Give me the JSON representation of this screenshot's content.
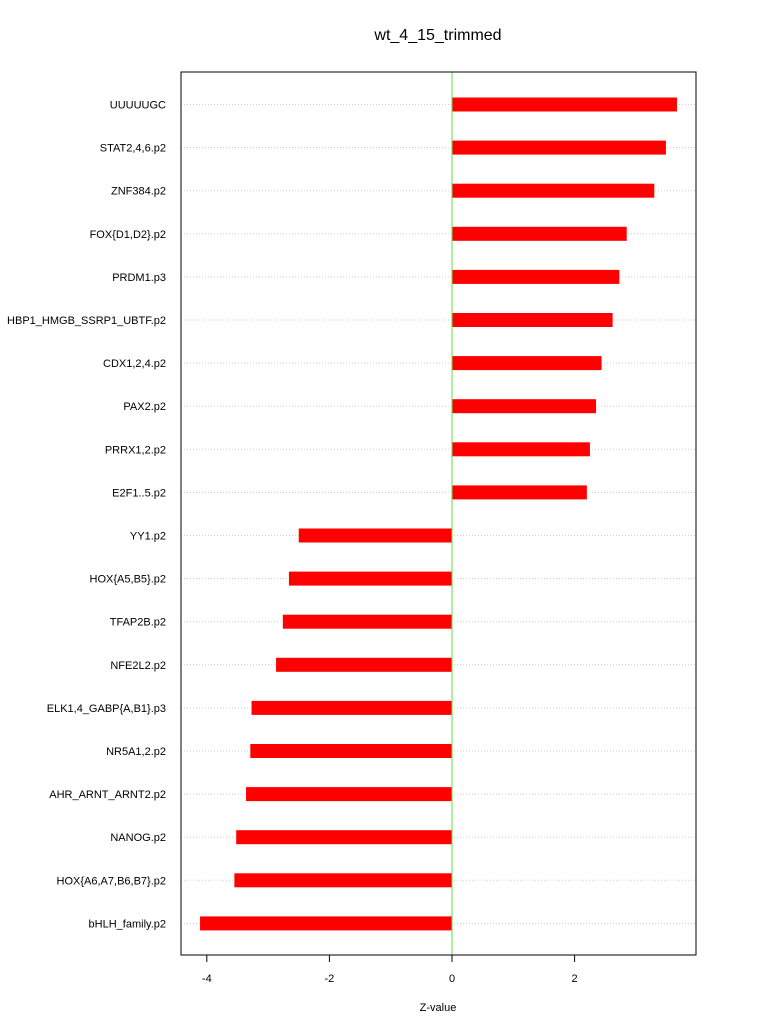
{
  "chart_data": {
    "type": "bar",
    "orientation": "horizontal",
    "title": "wt_4_15_trimmed",
    "xlabel": "Z-value",
    "ylabel": "",
    "xlim": [
      -4.4,
      4
    ],
    "xticks": [
      -4,
      -2,
      0,
      2
    ],
    "xtick_labels": [
      "-4",
      "-2",
      "0",
      "2"
    ],
    "grid": "horizontal dotted",
    "bar_color": "#ff0000",
    "zero_line_color": "#66dd44",
    "categories": [
      "UUUUUGC",
      "STAT2,4,6.p2",
      "ZNF384.p2",
      "FOX{D1,D2}.p2",
      "PRDM1.p3",
      "HBP1_HMGB_SSRP1_UBTF.p2",
      "CDX1,2,4.p2",
      "PAX2.p2",
      "PRRX1,2.p2",
      "E2F1..5.p2",
      "YY1.p2",
      "HOX{A5,B5}.p2",
      "TFAP2B.p2",
      "NFE2L2.p2",
      "ELK1,4_GABP{A,B1}.p3",
      "NR5A1,2.p2",
      "AHR_ARNT_ARNT2.p2",
      "NANOG.p2",
      "HOX{A6,A7,B6,B7}.p2",
      "bHLH_family.p2"
    ],
    "values": [
      3.67,
      3.49,
      3.3,
      2.85,
      2.73,
      2.62,
      2.44,
      2.35,
      2.25,
      2.2,
      -2.5,
      -2.66,
      -2.76,
      -2.87,
      -3.27,
      -3.29,
      -3.36,
      -3.52,
      -3.55,
      -4.11
    ]
  }
}
